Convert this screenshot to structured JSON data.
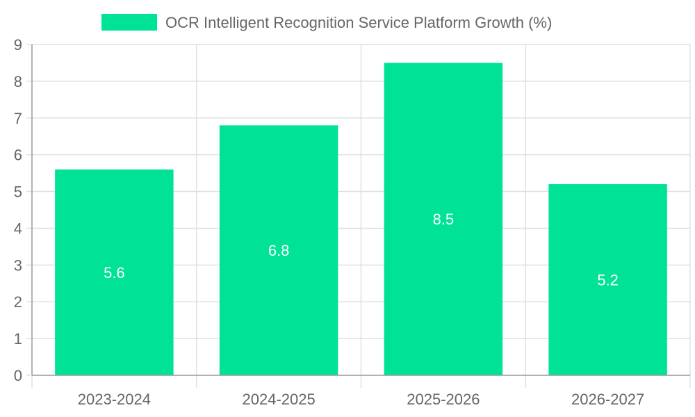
{
  "chart_data": {
    "type": "bar",
    "categories": [
      "2023-2024",
      "2024-2025",
      "2025-2026",
      "2026-2027"
    ],
    "series": [
      {
        "name": "OCR Intelligent Recognition Service Platform Growth (%)",
        "values": [
          5.6,
          6.8,
          8.5,
          5.2
        ],
        "color": "#00e396"
      }
    ],
    "ylim": [
      0,
      9
    ],
    "yticks": [
      0,
      1,
      2,
      3,
      4,
      5,
      6,
      7,
      8,
      9
    ],
    "grid": true,
    "legend_position": "top-center",
    "data_labels": true,
    "colors": {
      "grid": "#e0e0e0",
      "axis": "#999999",
      "tick_text": "#666666",
      "label_text": "#ffffff"
    }
  }
}
